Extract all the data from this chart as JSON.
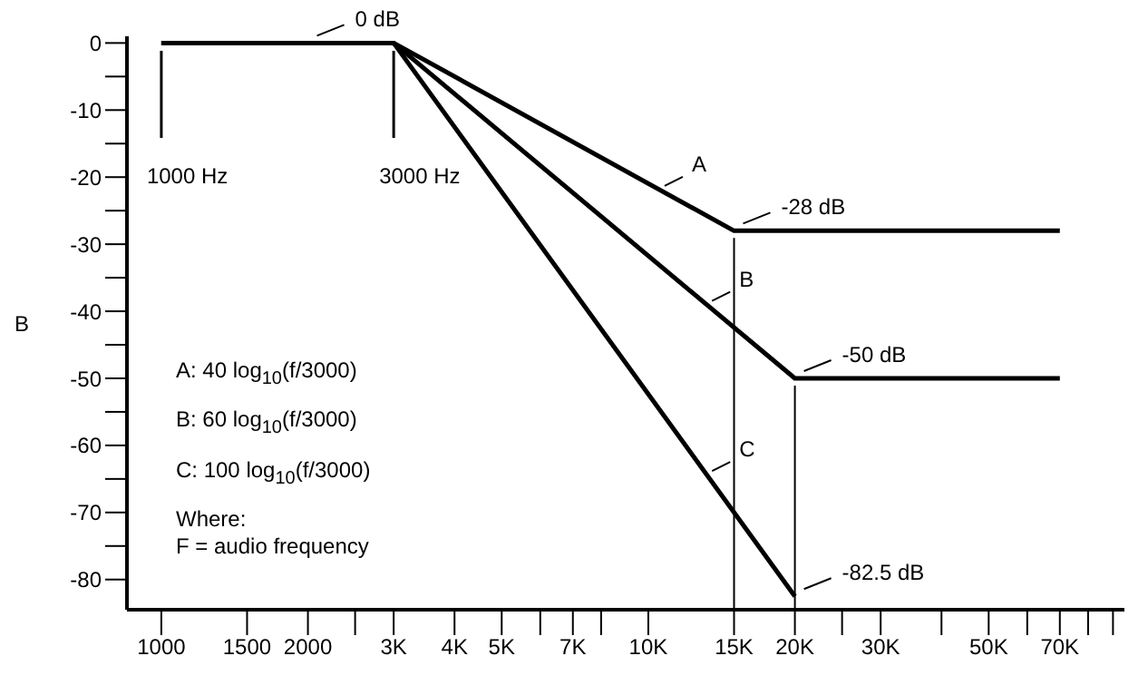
{
  "chart_data": {
    "type": "line",
    "ylabel": "B",
    "log": "x",
    "line_style": "solid",
    "marker": "none",
    "xlim": [
      850,
      95000
    ],
    "ylim": [
      -84.5,
      1
    ],
    "xticks": [
      1000,
      1500,
      2000,
      {
        "value": 2500,
        "label": null
      },
      {
        "value": 3000,
        "label": "3K"
      },
      {
        "value": 4000,
        "label": "4K"
      },
      {
        "value": 5000,
        "label": "5K"
      },
      {
        "value": 6000,
        "label": null
      },
      {
        "value": 7000,
        "label": "7K"
      },
      {
        "value": 8000,
        "label": null
      },
      {
        "value": 10000,
        "label": "10K"
      },
      {
        "value": 15000,
        "label": "15K"
      },
      {
        "value": 20000,
        "label": "20K"
      },
      {
        "value": 25000,
        "label": null
      },
      {
        "value": 30000,
        "label": "30K"
      },
      {
        "value": 40000,
        "label": null
      },
      {
        "value": 50000,
        "label": "50K"
      },
      {
        "value": 60000,
        "label": null
      },
      {
        "value": 70000,
        "label": "70K"
      },
      {
        "value": 80000,
        "label": null
      },
      {
        "value": 90000,
        "label": null
      }
    ],
    "yticks": [
      0,
      {
        "value": -5,
        "label": null
      },
      -10,
      {
        "value": -15,
        "label": null
      },
      -20,
      {
        "value": -25,
        "label": null
      },
      -30,
      {
        "value": -35,
        "label": null
      },
      -40,
      {
        "value": -45,
        "label": null
      },
      -50,
      {
        "value": -55,
        "label": null
      },
      -60,
      {
        "value": -65,
        "label": null
      },
      -70,
      {
        "value": -75,
        "label": null
      },
      -80
    ],
    "series": [
      {
        "name": "A",
        "color": "#000000",
        "x": [
          1000,
          3000,
          15000,
          70000
        ],
        "values": [
          0,
          0,
          -28,
          -28
        ]
      },
      {
        "name": "B",
        "color": "#000000",
        "x": [
          1000,
          3000,
          20000,
          70000
        ],
        "values": [
          0,
          0,
          -50,
          -50
        ]
      },
      {
        "name": "C",
        "color": "#000000",
        "x": [
          1000,
          3000,
          20000
        ],
        "values": [
          0,
          0,
          -82.5
        ]
      }
    ],
    "ref_lines": [
      {
        "axis": "x",
        "value": 1000,
        "label": "1000 Hz"
      },
      {
        "axis": "x",
        "value": 3000,
        "label": "3000 Hz"
      },
      {
        "axis": "x",
        "value": 15000
      },
      {
        "axis": "x",
        "value": 20000
      }
    ],
    "annotations": [
      {
        "text": "0 dB",
        "x": 2000,
        "y": 0
      },
      {
        "text": "-28 dB",
        "x": 15000,
        "y": -28
      },
      {
        "text": "-50 dB",
        "x": 20000,
        "y": -50
      },
      {
        "text": "-82.5 dB",
        "x": 20000,
        "y": -82.5
      },
      "A: 40 log$_{10}$(f/3000)",
      "B: 60 log$_{10}$(f/3000)",
      "C: 100 log$_{10}$(f/3000)",
      "Where:",
      "F = audio frequency"
    ]
  }
}
